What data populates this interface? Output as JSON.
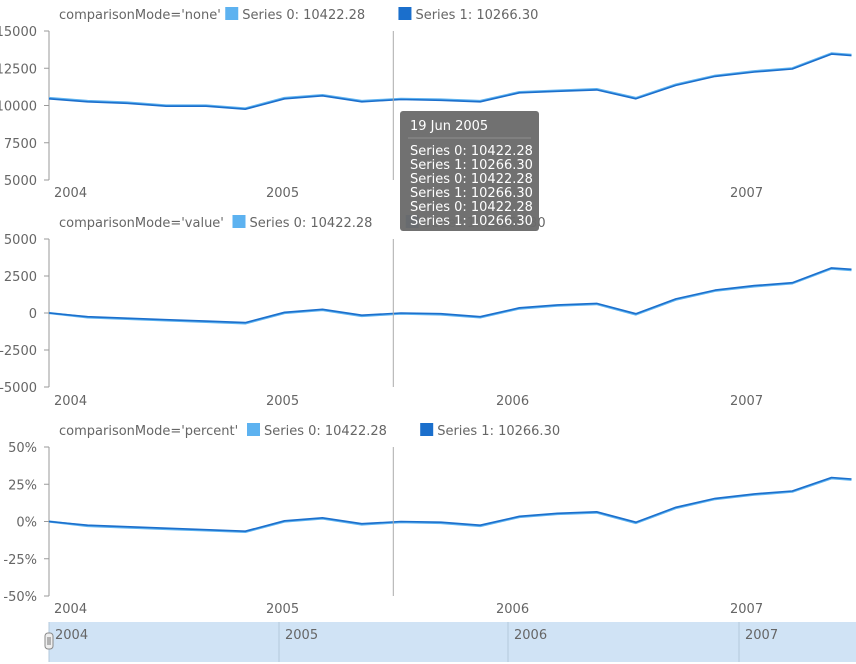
{
  "colors": {
    "series0": "#5DB2F0",
    "series1": "#1B6FCC",
    "axis": "#9a9a9a",
    "text": "#666666",
    "crosshair": "#aaaaaa",
    "tooltip_bg": "#6b6b6b",
    "scroller_bg": "#d0e3f5"
  },
  "tooltip": {
    "date": "19 Jun 2005",
    "lines": [
      "Series 0: 10422.28",
      "Series 1: 10266.30",
      "Series 0: 10422.28",
      "Series 1: 10266.30",
      "Series 0: 10422.28",
      "Series 1: 10266.30"
    ]
  },
  "crosshair_date": "2005-06-19",
  "scroller": {
    "labels": [
      "2004",
      "2005",
      "2006",
      "2007"
    ]
  },
  "chart_data": [
    {
      "type": "line",
      "comparison_label": "comparisonMode='none'",
      "x_domain": [
        "2004-01-01",
        "2007-06-08"
      ],
      "x_ticks": [
        "2004",
        "2005",
        "",
        "2007"
      ],
      "ylim": [
        5000,
        15000
      ],
      "y_ticks": [
        "5000",
        "7500",
        "10000",
        "12500",
        "15000"
      ],
      "series": [
        {
          "name": "Series 0",
          "legend": "Series 0: 10422.28",
          "color": "#5DB2F0"
        },
        {
          "name": "Series 1",
          "legend": "Series 1: 10266.30",
          "color": "#1B6FCC"
        }
      ],
      "x": [
        "2004-01",
        "2004-03",
        "2004-05",
        "2004-07",
        "2004-09",
        "2004-11",
        "2005-01",
        "2005-03",
        "2005-05",
        "2005-07",
        "2005-09",
        "2005-11",
        "2006-01",
        "2006-03",
        "2006-05",
        "2006-07",
        "2006-09",
        "2006-11",
        "2007-01",
        "2007-03",
        "2007-05",
        "2007-06"
      ],
      "values": [
        [
          10500,
          10300,
          10200,
          10000,
          10000,
          9800,
          10500,
          10700,
          10300,
          10450,
          10400,
          10300,
          10900,
          11000,
          11100,
          10500,
          11400,
          12000,
          12300,
          12500,
          13500,
          13400
        ],
        [
          10450,
          10250,
          10150,
          9950,
          9950,
          9750,
          10450,
          10650,
          10250,
          10400,
          10350,
          10250,
          10850,
          10950,
          11050,
          10450,
          11350,
          11950,
          12250,
          12450,
          13450,
          13350
        ]
      ]
    },
    {
      "type": "line",
      "comparison_label": "comparisonMode='value'",
      "x_domain": [
        "2004-01-01",
        "2007-06-08"
      ],
      "x_ticks": [
        "2004",
        "2005",
        "2006",
        "2007"
      ],
      "ylim": [
        -5000,
        5000
      ],
      "y_ticks": [
        "-5000",
        "-2500",
        "0",
        "2500",
        "5000"
      ],
      "series": [
        {
          "name": "Series 0",
          "legend": "Series 0: 10422.28",
          "color": "#5DB2F0"
        },
        {
          "name": "Series 1",
          "legend": "Series 1: 10266.30",
          "color": "#1B6FCC"
        }
      ],
      "x": [
        "2004-01",
        "2004-03",
        "2004-05",
        "2004-07",
        "2004-09",
        "2004-11",
        "2005-01",
        "2005-03",
        "2005-05",
        "2005-07",
        "2005-09",
        "2005-11",
        "2006-01",
        "2006-03",
        "2006-05",
        "2006-07",
        "2006-09",
        "2006-11",
        "2007-01",
        "2007-03",
        "2007-05",
        "2007-06"
      ],
      "values": [
        [
          0,
          -300,
          -400,
          -500,
          -600,
          -700,
          0,
          200,
          -200,
          -50,
          -100,
          -300,
          300,
          500,
          600,
          -100,
          900,
          1500,
          1800,
          2000,
          3000,
          2900
        ],
        [
          0,
          -250,
          -350,
          -450,
          -550,
          -650,
          50,
          250,
          -150,
          0,
          -50,
          -250,
          350,
          550,
          650,
          -50,
          950,
          1550,
          1850,
          2050,
          3050,
          2950
        ]
      ]
    },
    {
      "type": "line",
      "comparison_label": "comparisonMode='percent'",
      "x_domain": [
        "2004-01-01",
        "2007-06-08"
      ],
      "x_ticks": [
        "2004",
        "2005",
        "2006",
        "2007"
      ],
      "ylim": [
        -50,
        50
      ],
      "y_ticks": [
        "-50%",
        "-25%",
        "0%",
        "25%",
        "50%"
      ],
      "series": [
        {
          "name": "Series 0",
          "legend": "Series 0: 10422.28",
          "color": "#5DB2F0"
        },
        {
          "name": "Series 1",
          "legend": "Series 1: 10266.30",
          "color": "#1B6FCC"
        }
      ],
      "x": [
        "2004-01",
        "2004-03",
        "2004-05",
        "2004-07",
        "2004-09",
        "2004-11",
        "2005-01",
        "2005-03",
        "2005-05",
        "2005-07",
        "2005-09",
        "2005-11",
        "2006-01",
        "2006-03",
        "2006-05",
        "2006-07",
        "2006-09",
        "2006-11",
        "2007-01",
        "2007-03",
        "2007-05",
        "2007-06"
      ],
      "values": [
        [
          0,
          -3,
          -4,
          -5,
          -6,
          -7,
          0,
          2,
          -2,
          -0.5,
          -1,
          -3,
          3,
          5,
          6,
          -1,
          9,
          15,
          18,
          20,
          29,
          28
        ],
        [
          0,
          -2.5,
          -3.5,
          -4.5,
          -5.5,
          -6.5,
          0.5,
          2.5,
          -1.5,
          0,
          -0.5,
          -2.5,
          3.5,
          5.5,
          6.5,
          -0.5,
          9.5,
          15.5,
          18.5,
          20.5,
          29.5,
          28.5
        ]
      ]
    }
  ]
}
